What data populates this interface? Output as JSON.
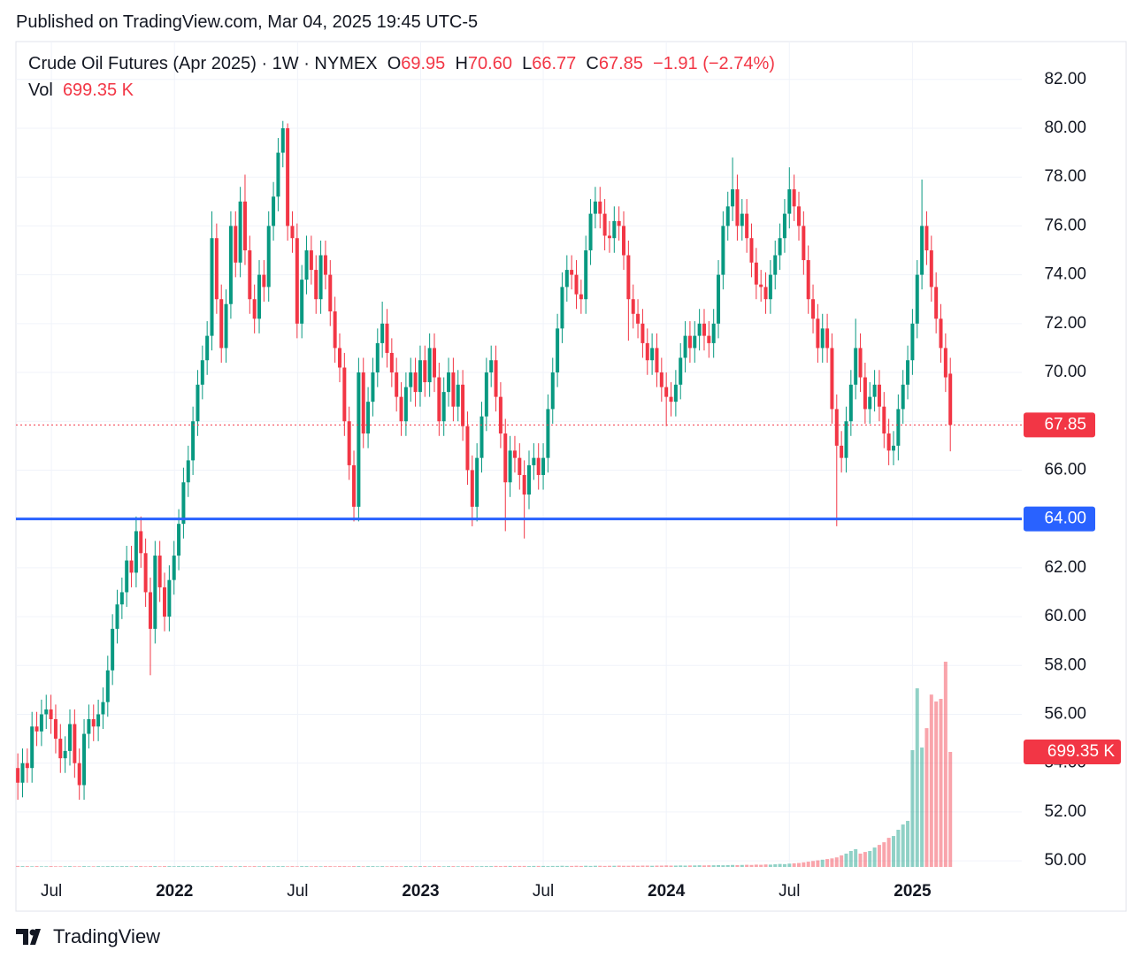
{
  "header": {
    "published": "Published on TradingView.com, Mar 04, 2025 19:45 UTC-5",
    "symbol": "Crude Oil Futures (Apr 2025) · 1W · NYMEX",
    "ohlc": [
      {
        "key": "O",
        "text": "69.95"
      },
      {
        "key": "H",
        "text": "70.60"
      },
      {
        "key": "L",
        "text": "66.77"
      },
      {
        "key": "C",
        "text": "67.85"
      }
    ],
    "change": "−1.91 (−2.74%)",
    "vol_key": "Vol",
    "vol": "699.35 K"
  },
  "footer": {
    "brand": "TradingView"
  },
  "chart_data": {
    "type": "candlestick",
    "up_color": "#089981",
    "down_color": "#f23645",
    "open": [
      53.8,
      53.2,
      54.0,
      53.8,
      55.5,
      55.3,
      56.0,
      56.2,
      55.8,
      55.0,
      54.2,
      54.5,
      55.6,
      54.0,
      53.1,
      55.2,
      55.8,
      55.5,
      56.0,
      56.5,
      57.8,
      59.5,
      60.5,
      61.0,
      62.3,
      61.8,
      63.5,
      62.6,
      61.0,
      59.5,
      62.5,
      61.2,
      60.0,
      61.5,
      62.5,
      63.8,
      65.5,
      66.4,
      68.0,
      69.5,
      70.5,
      71.5,
      75.5,
      73.0,
      71.0,
      72.8,
      76.0,
      74.5,
      77.0,
      75.0,
      73.0,
      72.2,
      74.0,
      73.5,
      76.0,
      77.2,
      79.0,
      80.0,
      76.0,
      75.5,
      72.0,
      73.8,
      75.0,
      74.2,
      73.0,
      74.8,
      74.0,
      72.5,
      71.0,
      70.2,
      68.0,
      66.2,
      64.5,
      70.0,
      67.5,
      68.8,
      70.0,
      71.2,
      72.0,
      70.8,
      70.0,
      69.0,
      68.0,
      69.4,
      70.0,
      69.2,
      70.5,
      69.6,
      71.0,
      69.8,
      68.0,
      69.2,
      70.0,
      68.6,
      69.5,
      67.8,
      66.0,
      64.5,
      66.5,
      68.2,
      70.0,
      70.5,
      69.0,
      67.5,
      65.5,
      66.8,
      66.5,
      65.8,
      65.0,
      66.2,
      66.5,
      65.8,
      66.5,
      68.5,
      70.0,
      71.8,
      73.5,
      74.2,
      74.0,
      73.2,
      73.0,
      75.0,
      76.5,
      77.0,
      76.5,
      75.6,
      75.5,
      76.2,
      76.0,
      74.8,
      73.0,
      72.4,
      72.0,
      71.2,
      70.5,
      71.0,
      70.0,
      69.4,
      69.0,
      68.8,
      69.5,
      70.6,
      71.5,
      71.0,
      71.5,
      72.0,
      71.5,
      71.2,
      72.0,
      74.0,
      76.0,
      76.8,
      77.5,
      76.0,
      76.5,
      75.5,
      74.5,
      73.6,
      73.5,
      73.0,
      74.0,
      74.8,
      75.5,
      76.5,
      77.5,
      76.8,
      76.0,
      74.6,
      73.0,
      72.2,
      71.0,
      71.8,
      71.0,
      68.5,
      67.0,
      66.5,
      68.0,
      69.5,
      71.0,
      69.8,
      68.5,
      69.0,
      69.5,
      68.6,
      67.5,
      66.8,
      67.0,
      68.5,
      69.5,
      70.5,
      72.0,
      74.0,
      76.0,
      75.0,
      73.5,
      72.2,
      71.0,
      69.95
    ],
    "high": [
      54.4,
      54.6,
      54.6,
      56.1,
      56.1,
      56.6,
      56.8,
      56.8,
      56.4,
      55.6,
      55.1,
      56.2,
      56.2,
      54.6,
      55.8,
      56.4,
      56.4,
      56.6,
      57.1,
      58.4,
      60.1,
      61.1,
      61.6,
      62.9,
      62.9,
      64.1,
      64.1,
      63.2,
      61.6,
      63.1,
      63.1,
      61.8,
      62.1,
      63.1,
      64.4,
      66.1,
      67.0,
      68.6,
      70.1,
      71.1,
      72.1,
      76.6,
      76.1,
      73.6,
      73.4,
      76.6,
      76.6,
      77.6,
      78.1,
      75.6,
      73.6,
      74.6,
      74.6,
      76.6,
      77.8,
      79.6,
      80.3,
      80.2,
      76.6,
      76.1,
      74.4,
      75.6,
      75.6,
      74.8,
      75.4,
      75.4,
      74.6,
      73.1,
      71.6,
      70.8,
      68.6,
      66.8,
      70.6,
      70.6,
      69.4,
      70.6,
      71.8,
      72.9,
      72.6,
      71.4,
      70.6,
      69.6,
      70.0,
      70.6,
      70.6,
      71.1,
      71.1,
      71.6,
      71.6,
      70.4,
      69.8,
      70.6,
      70.6,
      70.1,
      70.1,
      68.4,
      66.6,
      67.1,
      68.8,
      70.6,
      71.1,
      71.1,
      69.6,
      68.1,
      67.4,
      67.4,
      67.1,
      66.4,
      66.8,
      67.1,
      67.1,
      67.1,
      69.1,
      70.6,
      72.4,
      74.1,
      74.8,
      74.8,
      74.6,
      73.8,
      75.6,
      77.1,
      77.6,
      77.6,
      77.1,
      76.2,
      76.8,
      76.8,
      76.6,
      75.4,
      73.6,
      73.0,
      72.6,
      71.8,
      71.6,
      71.6,
      70.6,
      70.0,
      69.6,
      70.1,
      71.2,
      72.1,
      72.1,
      72.1,
      72.6,
      72.6,
      72.1,
      72.6,
      74.6,
      76.6,
      77.4,
      78.8,
      78.1,
      77.1,
      77.1,
      76.1,
      75.1,
      74.2,
      74.1,
      74.6,
      75.4,
      76.1,
      77.1,
      78.4,
      78.1,
      77.4,
      76.6,
      75.2,
      73.6,
      72.8,
      72.4,
      72.4,
      71.6,
      69.1,
      67.6,
      68.6,
      70.1,
      72.2,
      71.6,
      70.4,
      69.6,
      70.1,
      70.1,
      69.2,
      68.1,
      67.6,
      69.1,
      70.1,
      71.1,
      72.6,
      74.6,
      77.9,
      76.6,
      75.6,
      74.1,
      72.8,
      71.6,
      70.6
    ],
    "low": [
      52.5,
      52.6,
      53.2,
      53.2,
      54.7,
      54.7,
      55.4,
      55.2,
      54.4,
      53.6,
      53.6,
      53.9,
      53.4,
      52.5,
      52.5,
      54.6,
      54.9,
      54.9,
      55.4,
      55.9,
      57.2,
      58.9,
      59.9,
      60.4,
      61.2,
      61.2,
      62.0,
      60.4,
      57.6,
      58.9,
      60.6,
      59.4,
      59.4,
      60.9,
      61.9,
      63.2,
      64.9,
      65.8,
      67.4,
      68.9,
      69.9,
      70.9,
      72.4,
      70.4,
      70.4,
      72.2,
      73.9,
      73.9,
      74.4,
      72.4,
      71.6,
      71.6,
      72.9,
      72.9,
      75.4,
      76.6,
      78.4,
      75.4,
      74.9,
      71.4,
      71.4,
      73.2,
      73.6,
      72.4,
      72.4,
      73.4,
      71.9,
      70.4,
      69.6,
      67.4,
      65.6,
      63.9,
      63.9,
      66.9,
      66.9,
      68.2,
      69.4,
      70.6,
      70.2,
      69.4,
      68.4,
      67.4,
      67.4,
      68.8,
      68.6,
      68.6,
      69.0,
      69.0,
      69.2,
      67.4,
      67.4,
      68.6,
      68.0,
      68.0,
      67.2,
      65.4,
      63.7,
      63.9,
      65.9,
      67.6,
      69.4,
      68.4,
      66.9,
      63.5,
      64.9,
      65.9,
      65.2,
      63.2,
      64.4,
      65.6,
      65.2,
      65.2,
      65.9,
      67.9,
      69.4,
      71.2,
      72.9,
      73.4,
      72.6,
      72.4,
      72.4,
      74.4,
      75.9,
      75.9,
      75.0,
      74.9,
      74.9,
      75.4,
      74.2,
      71.3,
      71.8,
      71.4,
      70.6,
      69.9,
      69.9,
      69.4,
      68.8,
      67.8,
      68.2,
      68.2,
      68.9,
      70.0,
      70.4,
      70.4,
      70.9,
      70.9,
      70.6,
      70.6,
      71.4,
      73.4,
      75.4,
      76.2,
      75.4,
      75.4,
      74.9,
      73.9,
      73.0,
      72.9,
      72.4,
      72.4,
      73.4,
      74.2,
      74.9,
      75.9,
      76.2,
      75.4,
      74.0,
      72.4,
      71.6,
      70.4,
      70.4,
      70.4,
      67.9,
      63.7,
      65.9,
      65.9,
      67.4,
      68.9,
      69.2,
      67.9,
      67.9,
      68.4,
      68.0,
      66.9,
      66.2,
      66.2,
      66.4,
      67.9,
      68.9,
      69.9,
      71.4,
      73.4,
      74.4,
      72.9,
      71.6,
      70.4,
      69.2,
      66.77
    ],
    "close": [
      53.2,
      54.0,
      53.8,
      55.5,
      55.3,
      56.0,
      56.2,
      55.8,
      55.0,
      54.2,
      54.5,
      55.6,
      54.0,
      53.1,
      55.2,
      55.8,
      55.5,
      56.0,
      56.5,
      57.8,
      59.5,
      60.5,
      61.0,
      62.3,
      61.8,
      63.5,
      62.6,
      61.0,
      59.5,
      62.5,
      61.2,
      60.0,
      61.5,
      62.5,
      63.8,
      65.5,
      66.4,
      68.0,
      69.5,
      70.5,
      71.5,
      75.5,
      73.0,
      71.0,
      72.8,
      76.0,
      74.5,
      77.0,
      75.0,
      73.0,
      72.2,
      74.0,
      73.5,
      76.0,
      77.2,
      79.0,
      80.0,
      76.0,
      75.5,
      72.0,
      73.8,
      75.0,
      74.2,
      73.0,
      74.8,
      74.0,
      72.5,
      71.0,
      70.2,
      68.0,
      66.2,
      64.5,
      70.0,
      67.5,
      68.8,
      70.0,
      71.2,
      72.0,
      70.8,
      70.0,
      69.0,
      68.0,
      69.4,
      70.0,
      69.2,
      70.5,
      69.6,
      71.0,
      69.8,
      68.0,
      69.2,
      70.0,
      68.6,
      69.5,
      67.8,
      66.0,
      64.5,
      66.5,
      68.2,
      70.0,
      70.5,
      69.0,
      67.5,
      65.5,
      66.8,
      66.5,
      65.8,
      65.0,
      66.2,
      66.5,
      65.8,
      66.5,
      68.5,
      70.0,
      71.8,
      73.5,
      74.2,
      74.0,
      73.2,
      73.0,
      75.0,
      76.5,
      77.0,
      76.5,
      75.6,
      75.5,
      76.2,
      76.0,
      74.8,
      73.0,
      72.4,
      72.0,
      71.2,
      70.5,
      71.0,
      70.0,
      69.4,
      69.0,
      68.8,
      69.5,
      70.6,
      71.5,
      71.0,
      71.5,
      72.0,
      71.5,
      71.2,
      72.0,
      74.0,
      76.0,
      76.8,
      77.5,
      76.0,
      76.5,
      75.5,
      74.5,
      73.6,
      73.5,
      73.0,
      74.0,
      74.8,
      75.5,
      76.5,
      77.5,
      76.8,
      76.0,
      74.6,
      73.0,
      72.2,
      71.0,
      71.8,
      71.0,
      68.5,
      67.0,
      66.5,
      68.0,
      69.5,
      71.0,
      69.8,
      68.5,
      69.0,
      69.5,
      68.6,
      67.5,
      66.8,
      67.0,
      68.5,
      69.5,
      70.5,
      72.0,
      74.0,
      76.0,
      75.0,
      73.5,
      72.2,
      71.0,
      69.8,
      67.85
    ],
    "volume": [
      6,
      5,
      5,
      4,
      5,
      4,
      4,
      5,
      4,
      4,
      4,
      5,
      4,
      4,
      5,
      4,
      4,
      5,
      4,
      5,
      5,
      4,
      5,
      5,
      4,
      5,
      5,
      4,
      5,
      5,
      4,
      5,
      5,
      4,
      5,
      5,
      4,
      5,
      4,
      5,
      5,
      4,
      5,
      5,
      4,
      5,
      4,
      5,
      5,
      4,
      5,
      4,
      5,
      5,
      4,
      5,
      5,
      4,
      5,
      4,
      5,
      5,
      4,
      5,
      4,
      5,
      5,
      4,
      5,
      5,
      4,
      5,
      5,
      4,
      5,
      5,
      4,
      5,
      4,
      5,
      5,
      4,
      5,
      5,
      4,
      5,
      5,
      4,
      5,
      5,
      4,
      5,
      5,
      4,
      5,
      5,
      5,
      4,
      5,
      5,
      5,
      6,
      5,
      6,
      6,
      5,
      6,
      6,
      5,
      6,
      6,
      6,
      5,
      6,
      6,
      7,
      6,
      6,
      7,
      6,
      7,
      6,
      7,
      7,
      6,
      7,
      7,
      8,
      7,
      7,
      8,
      7,
      8,
      8,
      7,
      8,
      8,
      9,
      8,
      8,
      9,
      8,
      9,
      9,
      10,
      9,
      10,
      10,
      11,
      10,
      11,
      12,
      11,
      12,
      13,
      12,
      14,
      13,
      15,
      14,
      16,
      18,
      17,
      20,
      22,
      24,
      28,
      32,
      36,
      40,
      44,
      48,
      52,
      58,
      70,
      81,
      97,
      108,
      81,
      91,
      97,
      118,
      134,
      150,
      177,
      188,
      226,
      258,
      280,
      710,
      1086,
      726,
      844,
      1048,
      1006,
      1022,
      1248,
      699.35
    ],
    "volume_label": "699.35 K",
    "ylim": [
      49.75,
      83.55
    ],
    "yticks": [
      {
        "value": 50,
        "label": "50.00"
      },
      {
        "value": 52,
        "label": "52.00"
      },
      {
        "value": 54,
        "label": "54.00"
      },
      {
        "value": 56,
        "label": "56.00"
      },
      {
        "value": 58,
        "label": "58.00"
      },
      {
        "value": 60,
        "label": "60.00"
      },
      {
        "value": 62,
        "label": "62.00"
      },
      {
        "value": 64,
        "label": "64.00"
      },
      {
        "value": 66,
        "label": "66.00"
      },
      {
        "value": 68,
        "label": "68.00"
      },
      {
        "value": 70,
        "label": "70.00"
      },
      {
        "value": 72,
        "label": "72.00"
      },
      {
        "value": 74,
        "label": "74.00"
      },
      {
        "value": 76,
        "label": "76.00"
      },
      {
        "value": 78,
        "label": "78.00"
      },
      {
        "value": 80,
        "label": "80.00"
      },
      {
        "value": 82,
        "label": "82.00"
      }
    ],
    "xlim": [
      -0.4,
      212.1
    ],
    "xticks": [
      {
        "value": 7.1,
        "label": "Jul"
      },
      {
        "value": 33.1,
        "label": "2022"
      },
      {
        "value": 59.1,
        "label": "Jul"
      },
      {
        "value": 85.1,
        "label": "2023"
      },
      {
        "value": 111,
        "label": "Jul"
      },
      {
        "value": 137,
        "label": "2024"
      },
      {
        "value": 163,
        "label": "Jul"
      },
      {
        "value": 189,
        "label": "2025"
      }
    ],
    "hline": {
      "value": 64,
      "label": "64.00",
      "color": "#2962ff"
    },
    "grid": true
  }
}
